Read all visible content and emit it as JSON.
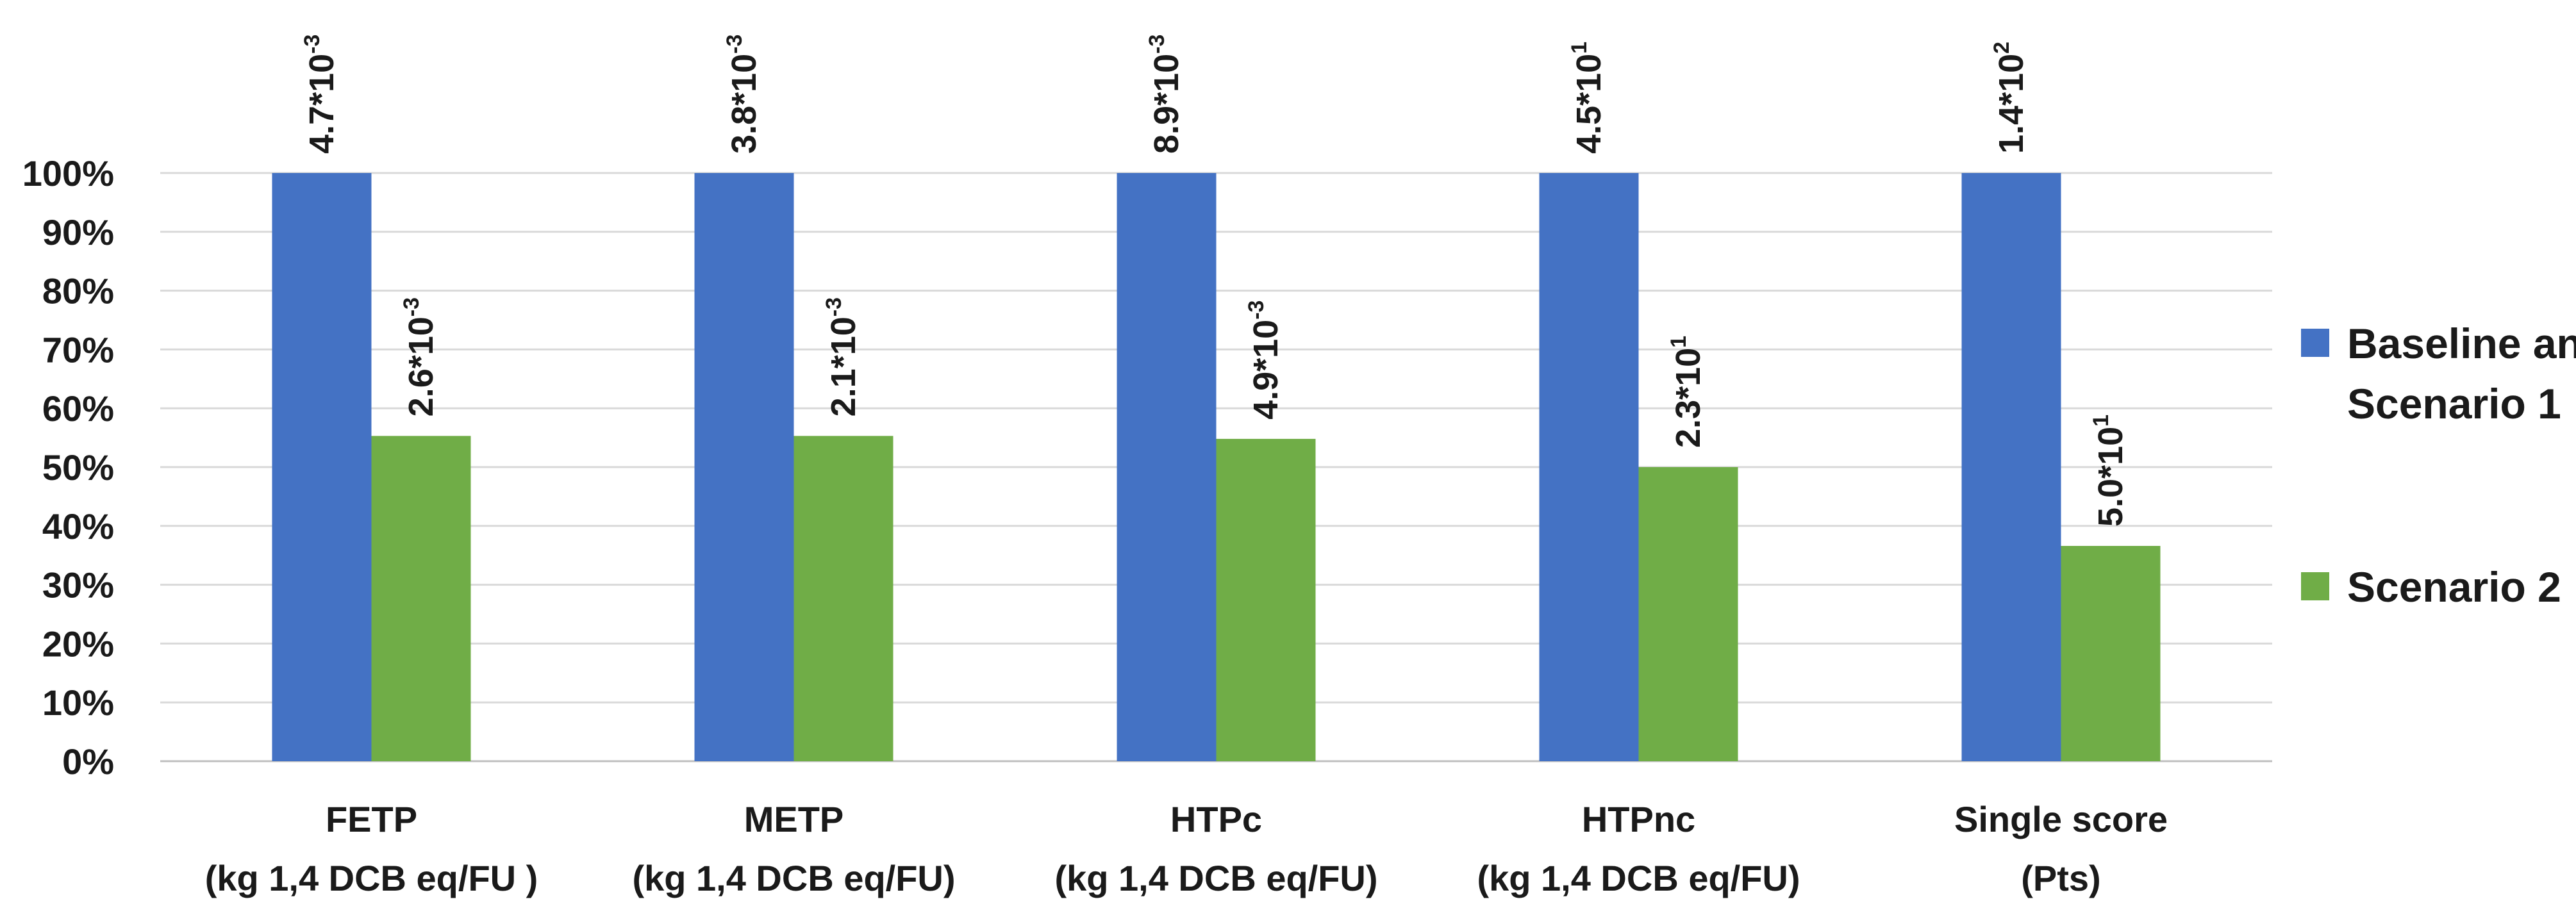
{
  "chart_data": {
    "type": "bar",
    "title": "",
    "xlabel": "",
    "ylabel": "",
    "ylim": [
      0,
      100
    ],
    "yticks": [
      "0%",
      "10%",
      "20%",
      "30%",
      "40%",
      "50%",
      "60%",
      "70%",
      "80%",
      "90%",
      "100%"
    ],
    "grid": true,
    "legend_position": "right",
    "categories": [
      {
        "line1": "FETP",
        "line2": "(kg 1,4 DCB eq/FU )"
      },
      {
        "line1": "METP",
        "line2": "(kg 1,4 DCB eq/FU)"
      },
      {
        "line1": "HTPc",
        "line2": "(kg 1,4 DCB eq/FU)"
      },
      {
        "line1": "HTPnc",
        "line2": "(kg 1,4 DCB eq/FU)"
      },
      {
        "line1": "Single score",
        "line2": "(Pts)"
      }
    ],
    "series": [
      {
        "name_line1": "Baseline and",
        "name_line2": "Scenario 1",
        "color": "#4472C4",
        "values": [
          100,
          100,
          100,
          100,
          100
        ],
        "labels": [
          {
            "mantissa": "4.7*10",
            "exp": "-3"
          },
          {
            "mantissa": "3.8*10",
            "exp": "-3"
          },
          {
            "mantissa": "8.9*10",
            "exp": "-3"
          },
          {
            "mantissa": "4.5*10",
            "exp": "1"
          },
          {
            "mantissa": "1.4*10",
            "exp": "2"
          }
        ]
      },
      {
        "name_line1": "Scenario 2",
        "name_line2": "",
        "color": "#70AD47",
        "values": [
          55.3,
          55.3,
          54.8,
          50.0,
          36.6
        ],
        "labels": [
          {
            "mantissa": "2.6*10",
            "exp": "-3"
          },
          {
            "mantissa": "2.1*10",
            "exp": "-3"
          },
          {
            "mantissa": "4.9*10",
            "exp": "-3"
          },
          {
            "mantissa": "2.3*10",
            "exp": "1"
          },
          {
            "mantissa": "5.0*10",
            "exp": "1"
          }
        ]
      }
    ]
  }
}
